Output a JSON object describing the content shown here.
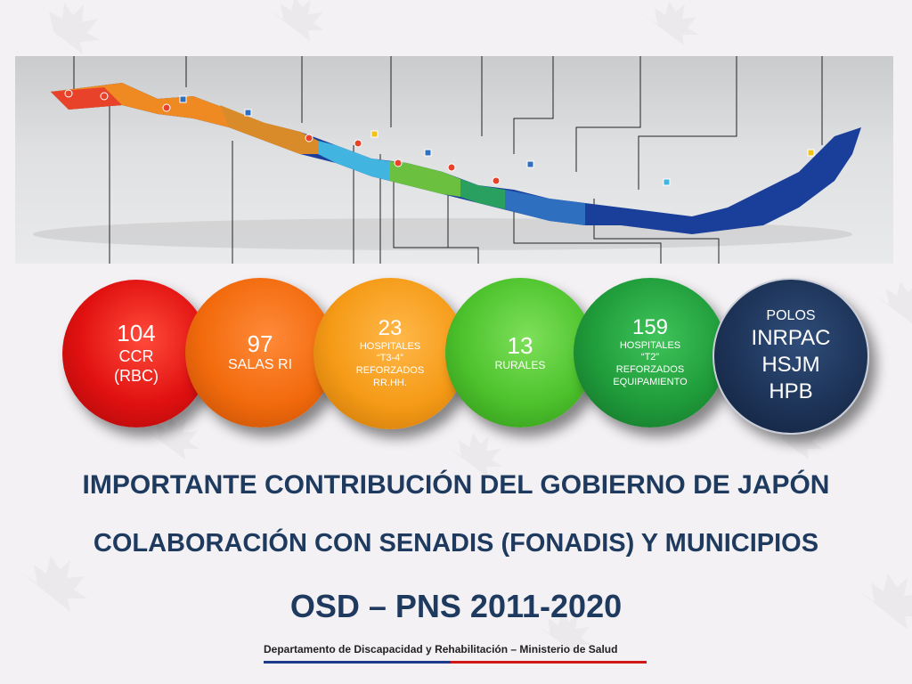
{
  "circles": [
    {
      "number": "104",
      "lines": [
        "CCR",
        "(RBC)"
      ],
      "color": "#e01010"
    },
    {
      "number": "97",
      "lines": [
        "SALAS RI"
      ],
      "color": "#f26a0c"
    },
    {
      "number": "23",
      "lines": [
        "HOSPITALES",
        "“T3-4”",
        "REFORZADOS",
        "RR.HH."
      ],
      "color": "#f59a16"
    },
    {
      "number": "13",
      "lines": [
        "RURALES"
      ],
      "color": "#4cc22c"
    },
    {
      "number": "159",
      "lines": [
        "HOSPITALES",
        "“T2”",
        "REFORZADOS",
        "EQUIPAMIENTO"
      ],
      "color": "#1f9b3a"
    },
    {
      "number": "POLOS",
      "lines": [
        "INRPAC",
        "HSJM",
        "HPB"
      ],
      "color": "#1d3357"
    }
  ],
  "headings": {
    "line1": "IMPORTANTE CONTRIBUCIÓN DEL GOBIERNO DE JAPÓN",
    "line2": "COLABORACIÓN CON SENADIS (FONADIS) Y MUNICIPIOS",
    "line3": "OSD – PNS 2011-2020"
  },
  "footer": {
    "text": "Departamento de Discapacidad y Rehabilitación – Ministerio de Salud",
    "line_colors": [
      "#1d3a8c",
      "#d01818"
    ]
  },
  "map": {
    "region_colors": [
      "#e8432a",
      "#ef8a22",
      "#d98b2a",
      "#42b4e0",
      "#6cc040",
      "#2aa060",
      "#2f6fc0",
      "#1a3f9a"
    ]
  }
}
